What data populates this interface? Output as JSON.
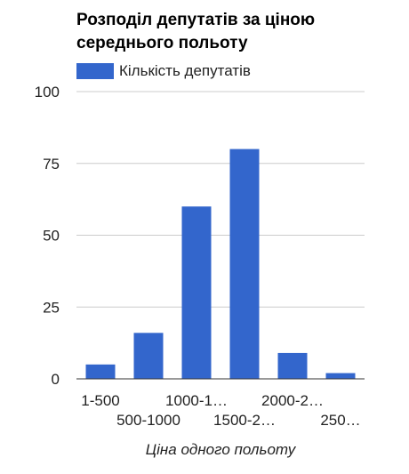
{
  "chart_data": {
    "type": "bar",
    "title": "Розподіл депутатів за ціною середнього польоту",
    "xlabel": "Ціна одного польоту",
    "ylabel": "",
    "categories": [
      "1-500",
      "500-1000",
      "1000-1…",
      "1500-2…",
      "2000-2…",
      "250…"
    ],
    "series": [
      {
        "name": "Кількість депутатів",
        "values": [
          5,
          16,
          60,
          80,
          9,
          2
        ]
      }
    ],
    "ylim": [
      0,
      100
    ],
    "yticks": [
      0,
      25,
      50,
      75,
      100
    ],
    "grid": true,
    "legend": "top-left",
    "colors": {
      "bar": "#3366cc",
      "grid": "#cccccc",
      "axis": "#333333"
    }
  }
}
